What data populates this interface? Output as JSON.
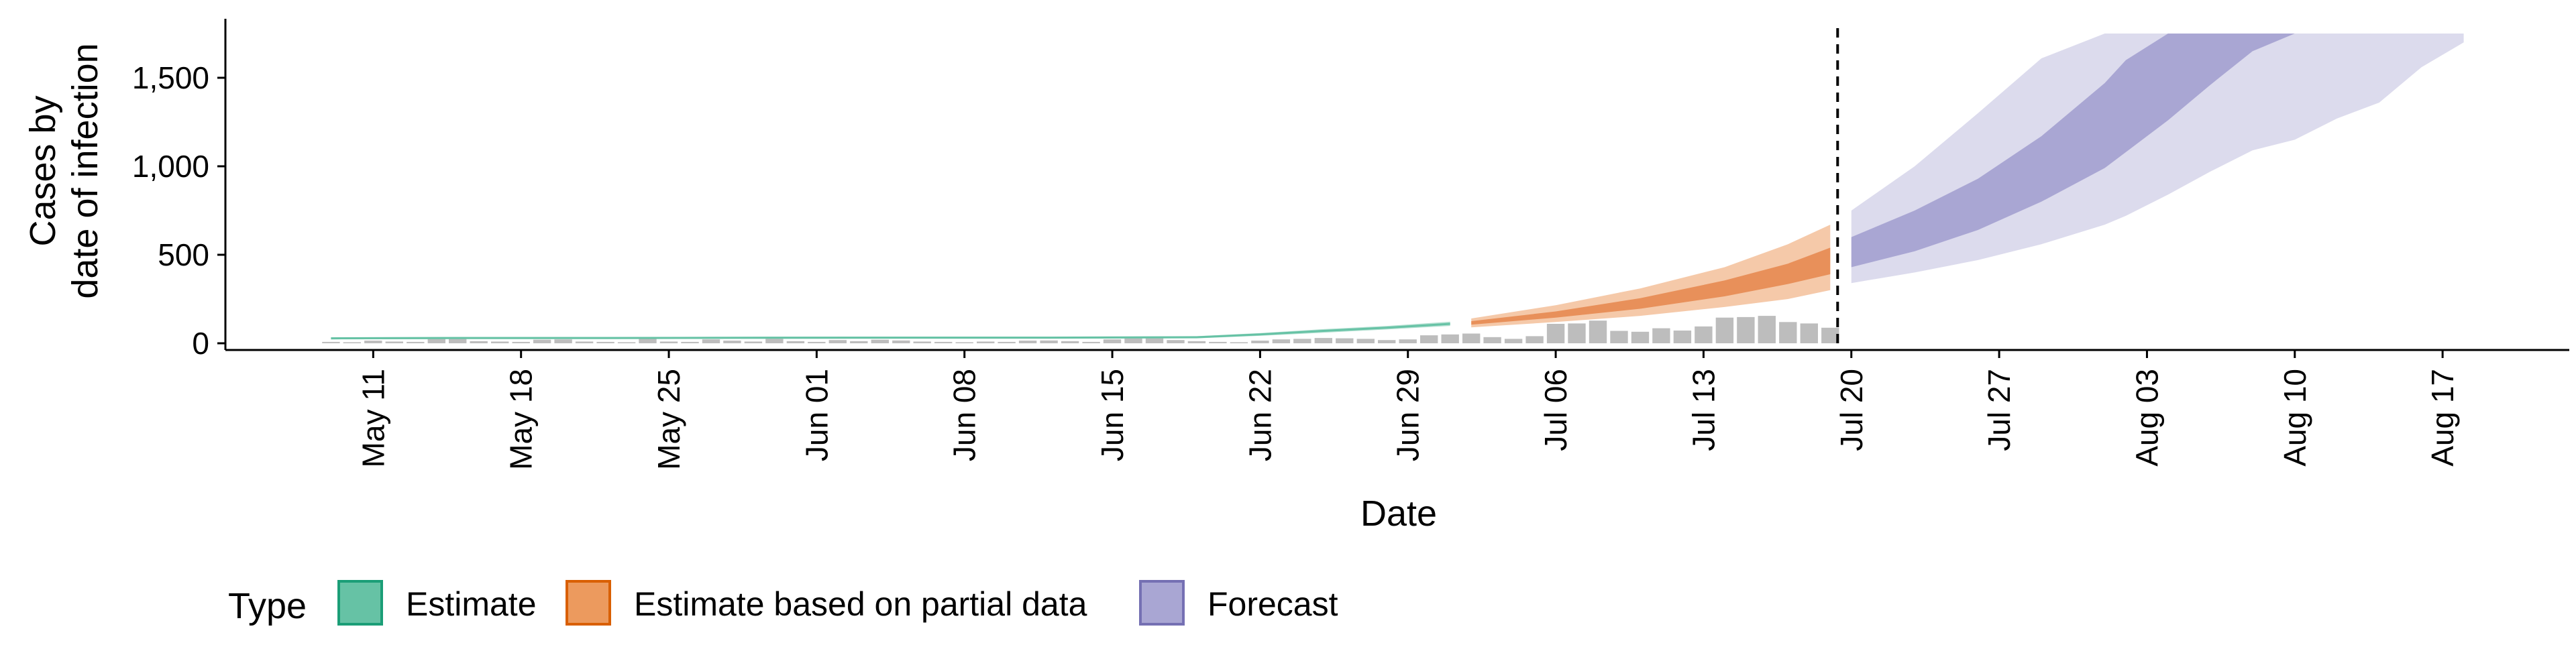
{
  "chart_data": {
    "type": "area",
    "title": "",
    "xlabel": "Date",
    "ylabel_lines": [
      "Cases by",
      "date of infection"
    ],
    "ylim": [
      0,
      1750
    ],
    "y_ticks": [
      0,
      500,
      1000,
      1500
    ],
    "y_tick_labels": [
      "0",
      "500",
      "1,000",
      "1,500"
    ],
    "x_range": [
      "2020-05-04",
      "2020-08-23"
    ],
    "x_ticks": [
      "2020-05-11",
      "2020-05-18",
      "2020-05-25",
      "2020-06-01",
      "2020-06-08",
      "2020-06-15",
      "2020-06-22",
      "2020-06-29",
      "2020-07-06",
      "2020-07-13",
      "2020-07-20",
      "2020-07-27",
      "2020-08-03",
      "2020-08-10",
      "2020-08-17"
    ],
    "x_tick_labels": [
      "May 11",
      "May 18",
      "May 25",
      "Jun 01",
      "Jun 08",
      "Jun 15",
      "Jun 22",
      "Jun 29",
      "Jul 06",
      "Jul 13",
      "Jul 20",
      "Jul 27",
      "Aug 03",
      "Aug 10",
      "Aug 17"
    ],
    "cutoff_date": "2020-07-19",
    "grid": false,
    "legend_placement": "bottom",
    "legend": {
      "title": "Type",
      "items": [
        {
          "label": "Estimate",
          "fill": "#66c2a5",
          "border": "#1b9e77"
        },
        {
          "label": "Estimate based on partial data",
          "fill": "#ec9a5e",
          "border": "#d95f02"
        },
        {
          "label": "Forecast",
          "fill": "#a9a6d3",
          "border": "#7570b3"
        }
      ]
    },
    "colors": {
      "bars": "#bdbdbd",
      "estimate_line": "#66c2a5",
      "estimate_band": "#b3e0d1",
      "partial_inner": "#e8905a",
      "partial_outer": "#f5c9a9",
      "forecast_inner": "#a9a6d3",
      "forecast_outer": "#dcdbed",
      "cutoff_line": "#000000"
    },
    "reported_cases": {
      "dates": [
        "2020-05-09",
        "2020-05-10",
        "2020-05-11",
        "2020-05-12",
        "2020-05-13",
        "2020-05-14",
        "2020-05-15",
        "2020-05-16",
        "2020-05-17",
        "2020-05-18",
        "2020-05-19",
        "2020-05-20",
        "2020-05-21",
        "2020-05-22",
        "2020-05-23",
        "2020-05-24",
        "2020-05-25",
        "2020-05-26",
        "2020-05-27",
        "2020-05-28",
        "2020-05-29",
        "2020-05-30",
        "2020-05-31",
        "2020-06-01",
        "2020-06-02",
        "2020-06-03",
        "2020-06-04",
        "2020-06-05",
        "2020-06-06",
        "2020-06-07",
        "2020-06-08",
        "2020-06-09",
        "2020-06-10",
        "2020-06-11",
        "2020-06-12",
        "2020-06-13",
        "2020-06-14",
        "2020-06-15",
        "2020-06-16",
        "2020-06-17",
        "2020-06-18",
        "2020-06-19",
        "2020-06-20",
        "2020-06-21",
        "2020-06-22",
        "2020-06-23",
        "2020-06-24",
        "2020-06-25",
        "2020-06-26",
        "2020-06-27",
        "2020-06-28",
        "2020-06-29",
        "2020-06-30",
        "2020-07-01",
        "2020-07-02",
        "2020-07-03",
        "2020-07-04",
        "2020-07-05",
        "2020-07-06",
        "2020-07-07",
        "2020-07-08",
        "2020-07-09",
        "2020-07-10",
        "2020-07-11",
        "2020-07-12",
        "2020-07-13",
        "2020-07-14",
        "2020-07-15",
        "2020-07-16",
        "2020-07-17",
        "2020-07-18",
        "2020-07-19"
      ],
      "values": [
        8,
        6,
        15,
        10,
        8,
        35,
        28,
        12,
        10,
        8,
        20,
        22,
        10,
        8,
        6,
        30,
        10,
        8,
        22,
        15,
        10,
        25,
        12,
        8,
        18,
        12,
        20,
        16,
        10,
        8,
        6,
        10,
        8,
        15,
        16,
        12,
        8,
        22,
        28,
        30,
        18,
        12,
        8,
        6,
        15,
        22,
        25,
        30,
        28,
        25,
        18,
        22,
        45,
        50,
        55,
        35,
        25,
        40,
        110,
        112,
        128,
        70,
        65,
        85,
        72,
        95,
        145,
        148,
        155,
        120,
        112,
        88
      ]
    },
    "estimate": {
      "dates": [
        "2020-05-09",
        "2020-05-15",
        "2020-05-22",
        "2020-05-29",
        "2020-06-05",
        "2020-06-12",
        "2020-06-16",
        "2020-06-19",
        "2020-06-22",
        "2020-06-25",
        "2020-06-28",
        "2020-07-01"
      ],
      "median": [
        28,
        30,
        30,
        31,
        32,
        32,
        33,
        34,
        50,
        70,
        88,
        110
      ],
      "lower": [
        22,
        24,
        24,
        25,
        26,
        26,
        27,
        28,
        42,
        60,
        78,
        98
      ],
      "upper": [
        34,
        36,
        36,
        37,
        38,
        38,
        39,
        40,
        58,
        80,
        98,
        122
      ]
    },
    "partial": {
      "dates": [
        "2020-07-02",
        "2020-07-06",
        "2020-07-10",
        "2020-07-14",
        "2020-07-17",
        "2020-07-19"
      ],
      "median": [
        112,
        160,
        220,
        300,
        375,
        430
      ],
      "lower50": [
        105,
        145,
        195,
        265,
        335,
        390
      ],
      "upper50": [
        125,
        180,
        255,
        355,
        450,
        540
      ],
      "lower90": [
        90,
        120,
        155,
        205,
        250,
        300
      ],
      "upper90": [
        140,
        215,
        310,
        430,
        560,
        670
      ]
    },
    "forecast": {
      "dates": [
        "2020-07-20",
        "2020-07-23",
        "2020-07-26",
        "2020-07-29",
        "2020-08-01",
        "2020-08-02",
        "2020-08-04",
        "2020-08-06",
        "2020-08-08",
        "2020-08-10",
        "2020-08-12",
        "2020-08-14",
        "2020-08-16",
        "2020-08-18"
      ],
      "lower50": [
        430,
        520,
        640,
        800,
        990,
        1080,
        1260,
        1460,
        1650,
        1750,
        1750,
        1750,
        1750,
        1750
      ],
      "upper50": [
        600,
        750,
        930,
        1170,
        1470,
        1600,
        1750,
        1750,
        1750,
        1750,
        1750,
        1750,
        1750,
        1750
      ],
      "lower90": [
        340,
        400,
        470,
        560,
        670,
        720,
        840,
        970,
        1090,
        1150,
        1270,
        1360,
        1560,
        1700
      ],
      "upper90": [
        750,
        1000,
        1300,
        1610,
        1750,
        1750,
        1750,
        1750,
        1750,
        1750,
        1750,
        1750,
        1750,
        1750
      ]
    }
  }
}
